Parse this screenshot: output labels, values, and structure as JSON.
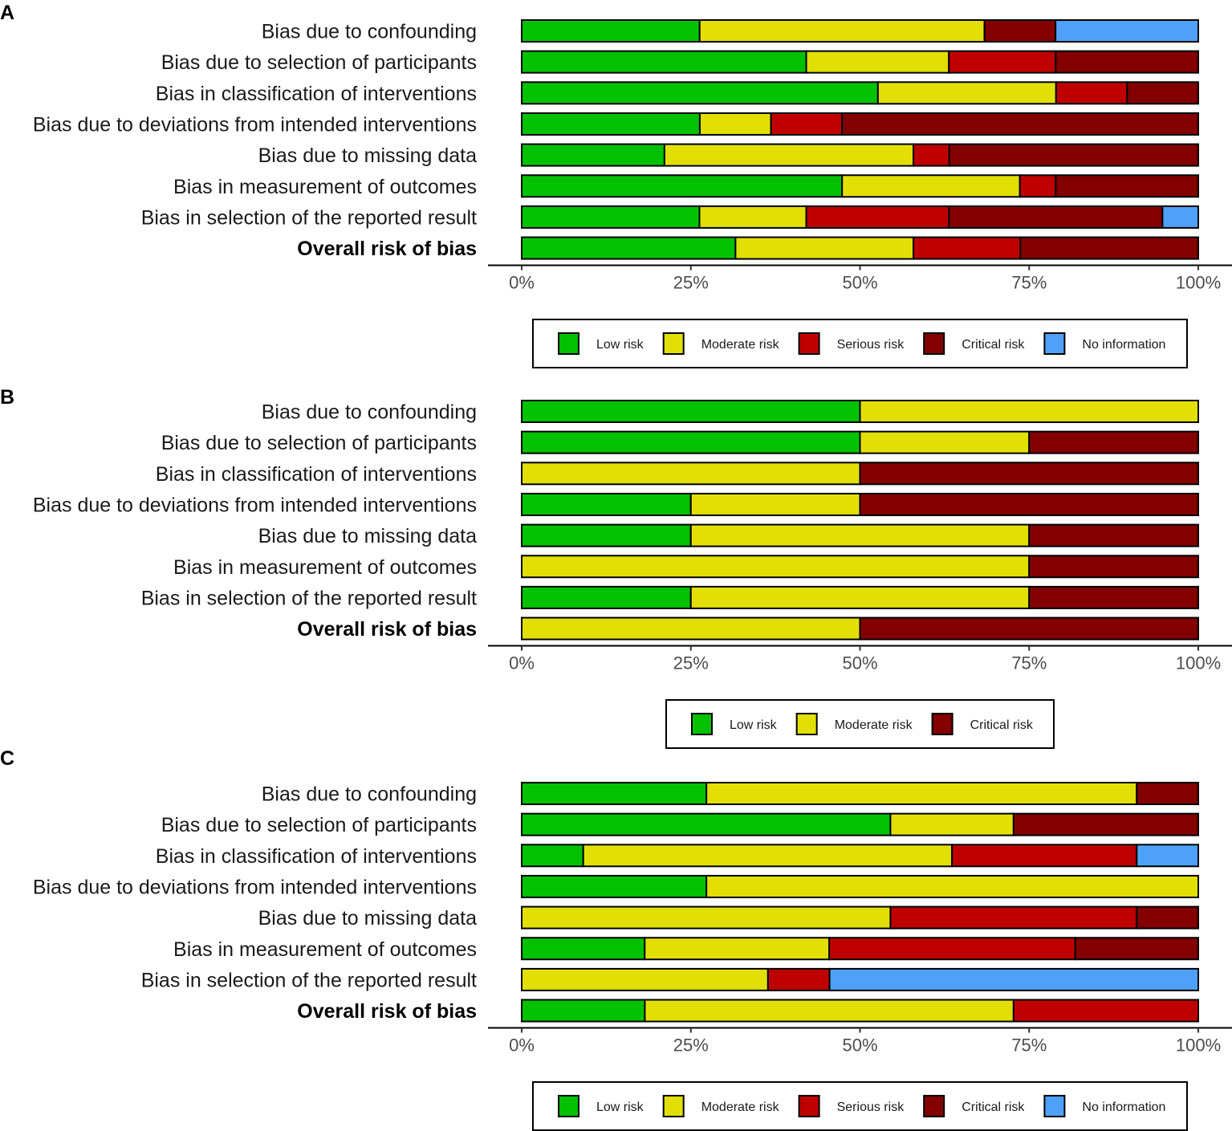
{
  "chart_data": [
    {
      "type": "bar",
      "orientation": "horizontal",
      "stacked": true,
      "panel_label": "A",
      "categories": [
        "Bias due to confounding",
        "Bias due to selection of participants",
        "Bias in classification of interventions",
        "Bias due to deviations from intended interventions",
        "Bias due to missing data",
        "Bias in measurement of outcomes",
        "Bias in selection of the reported result",
        "Overall risk of bias"
      ],
      "bold_category": "Overall risk of bias",
      "series": [
        {
          "name": "Low risk",
          "values": [
            26.3,
            42.1,
            52.6,
            26.3,
            21.1,
            47.4,
            26.3,
            31.6
          ]
        },
        {
          "name": "Moderate risk",
          "values": [
            42.1,
            21.1,
            26.3,
            10.5,
            36.8,
            26.3,
            15.8,
            26.3
          ]
        },
        {
          "name": "Serious risk",
          "values": [
            0,
            15.8,
            10.5,
            10.5,
            5.3,
            5.3,
            21.1,
            15.8
          ]
        },
        {
          "name": "Critical risk",
          "values": [
            10.5,
            21.1,
            10.5,
            52.6,
            36.8,
            21.1,
            31.6,
            26.3
          ]
        },
        {
          "name": "No information",
          "values": [
            21.1,
            0,
            0,
            0,
            0,
            0,
            5.3,
            0
          ]
        }
      ],
      "xlim": [
        0,
        100
      ],
      "xticks": [
        "0%",
        "25%",
        "50%",
        "75%",
        "100%"
      ],
      "legend_placement": "bottom",
      "legend": [
        "Low risk",
        "Moderate risk",
        "Serious risk",
        "Critical risk",
        "No information"
      ]
    },
    {
      "type": "bar",
      "orientation": "horizontal",
      "stacked": true,
      "panel_label": "B",
      "categories": [
        "Bias due to confounding",
        "Bias due to selection of participants",
        "Bias in classification of interventions",
        "Bias due to deviations from intended interventions",
        "Bias due to missing data",
        "Bias in measurement of outcomes",
        "Bias in selection of the reported result",
        "Overall risk of bias"
      ],
      "bold_category": "Overall risk of bias",
      "series": [
        {
          "name": "Low risk",
          "values": [
            50,
            50,
            0,
            25,
            25,
            0,
            25,
            0
          ]
        },
        {
          "name": "Moderate risk",
          "values": [
            50,
            25,
            50,
            25,
            50,
            75,
            50,
            50
          ]
        },
        {
          "name": "Critical risk",
          "values": [
            0,
            25,
            50,
            50,
            25,
            25,
            25,
            50
          ]
        }
      ],
      "xlim": [
        0,
        100
      ],
      "xticks": [
        "0%",
        "25%",
        "50%",
        "75%",
        "100%"
      ],
      "legend_placement": "bottom",
      "legend": [
        "Low risk",
        "Moderate risk",
        "Critical risk"
      ]
    },
    {
      "type": "bar",
      "orientation": "horizontal",
      "stacked": true,
      "panel_label": "C",
      "categories": [
        "Bias due to confounding",
        "Bias due to selection of participants",
        "Bias in classification of interventions",
        "Bias due to deviations from intended interventions",
        "Bias due to missing data",
        "Bias in measurement of outcomes",
        "Bias in selection of the reported result",
        "Overall risk of bias"
      ],
      "bold_category": "Overall risk of bias",
      "series": [
        {
          "name": "Low risk",
          "values": [
            27.3,
            54.5,
            9.1,
            27.3,
            0,
            18.2,
            0,
            18.2
          ]
        },
        {
          "name": "Moderate risk",
          "values": [
            63.6,
            18.2,
            54.5,
            72.7,
            54.5,
            27.3,
            36.4,
            54.5
          ]
        },
        {
          "name": "Serious risk",
          "values": [
            0,
            0,
            27.3,
            0,
            36.4,
            36.4,
            9.1,
            27.3
          ]
        },
        {
          "name": "Critical risk",
          "values": [
            9.1,
            27.3,
            0,
            0,
            9.1,
            18.2,
            0,
            0
          ]
        },
        {
          "name": "No information",
          "values": [
            0,
            0,
            9.1,
            0,
            0,
            0,
            54.5,
            0
          ]
        }
      ],
      "xlim": [
        0,
        100
      ],
      "xticks": [
        "0%",
        "25%",
        "50%",
        "75%",
        "100%"
      ],
      "legend_placement": "bottom",
      "legend": [
        "Low risk",
        "Moderate risk",
        "Serious risk",
        "Critical risk",
        "No information"
      ]
    }
  ],
  "colors": {
    "Low risk": "#02C100",
    "Moderate risk": "#E2DF07",
    "Serious risk": "#BF0000",
    "Critical risk": "#820000",
    "No information": "#4EA1F7"
  }
}
